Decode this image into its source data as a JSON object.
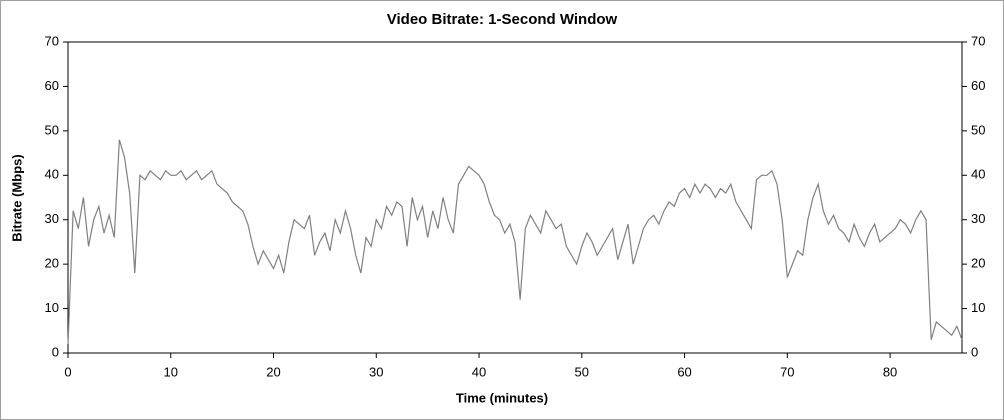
{
  "chart_data": {
    "type": "line",
    "title": "Video Bitrate: 1-Second Window",
    "x_label": "Time (minutes)",
    "y_label": "Bitrate (Mbps)",
    "color": "#808080",
    "xlim": [
      0,
      87
    ],
    "xticks": [
      0,
      10,
      20,
      30,
      40,
      50,
      60,
      70,
      80
    ],
    "ylim": [
      0,
      70
    ],
    "yticks": [
      0,
      10,
      20,
      30,
      40,
      50,
      60,
      70
    ],
    "y2lim": [
      0,
      70
    ],
    "y2ticks": [
      0,
      10,
      20,
      30,
      40,
      50,
      60,
      70
    ],
    "x": [
      0,
      0.5,
      1,
      1.5,
      2,
      2.5,
      3,
      3.5,
      4,
      4.5,
      5,
      5.5,
      6,
      6.5,
      7,
      7.5,
      8,
      8.5,
      9,
      9.5,
      10,
      10.5,
      11,
      11.5,
      12,
      12.5,
      13,
      13.5,
      14,
      14.5,
      15,
      15.5,
      16,
      16.5,
      17,
      17.5,
      18,
      18.5,
      19,
      19.5,
      20,
      20.5,
      21,
      21.5,
      22,
      22.5,
      23,
      23.5,
      24,
      24.5,
      25,
      25.5,
      26,
      26.5,
      27,
      27.5,
      28,
      28.5,
      29,
      29.5,
      30,
      30.5,
      31,
      31.5,
      32,
      32.5,
      33,
      33.5,
      34,
      34.5,
      35,
      35.5,
      36,
      36.5,
      37,
      37.5,
      38,
      38.5,
      39,
      39.5,
      40,
      40.5,
      41,
      41.5,
      42,
      42.5,
      43,
      43.5,
      44,
      44.5,
      45,
      45.5,
      46,
      46.5,
      47,
      47.5,
      48,
      48.5,
      49,
      49.5,
      50,
      50.5,
      51,
      51.5,
      52,
      52.5,
      53,
      53.5,
      54,
      54.5,
      55,
      55.5,
      56,
      56.5,
      57,
      57.5,
      58,
      58.5,
      59,
      59.5,
      60,
      60.5,
      61,
      61.5,
      62,
      62.5,
      63,
      63.5,
      64,
      64.5,
      65,
      65.5,
      66,
      66.5,
      67,
      67.5,
      68,
      68.5,
      69,
      69.5,
      70,
      70.5,
      71,
      71.5,
      72,
      72.5,
      73,
      73.5,
      74,
      74.5,
      75,
      75.5,
      76,
      76.5,
      77,
      77.5,
      78,
      78.5,
      79,
      79.5,
      80,
      80.5,
      81,
      81.5,
      82,
      82.5,
      83,
      83.5,
      84,
      84.5,
      85,
      85.5,
      86,
      86.5,
      87
    ],
    "values": [
      2,
      32,
      28,
      35,
      24,
      30,
      33,
      27,
      31,
      26,
      48,
      44,
      36,
      18,
      40,
      39,
      41,
      40,
      39,
      41,
      40,
      40,
      41,
      39,
      40,
      41,
      39,
      40,
      41,
      38,
      37,
      36,
      34,
      33,
      32,
      29,
      24,
      20,
      23,
      21,
      19,
      22,
      18,
      25,
      30,
      29,
      28,
      31,
      22,
      25,
      27,
      23,
      30,
      27,
      32,
      28,
      22,
      18,
      26,
      24,
      30,
      28,
      33,
      31,
      34,
      33,
      24,
      35,
      30,
      33,
      26,
      32,
      28,
      35,
      30,
      27,
      38,
      40,
      42,
      41,
      40,
      38,
      34,
      31,
      30,
      27,
      29,
      25,
      12,
      28,
      31,
      29,
      27,
      32,
      30,
      28,
      29,
      24,
      22,
      20,
      24,
      27,
      25,
      22,
      24,
      26,
      28,
      21,
      25,
      29,
      20,
      24,
      28,
      30,
      31,
      29,
      32,
      34,
      33,
      36,
      37,
      35,
      38,
      36,
      38,
      37,
      35,
      37,
      36,
      38,
      34,
      32,
      30,
      28,
      39,
      40,
      40,
      41,
      38,
      30,
      17,
      20,
      23,
      22,
      30,
      35,
      38,
      32,
      29,
      31,
      28,
      27,
      25,
      29,
      26,
      24,
      27,
      29,
      25,
      26,
      27,
      28,
      30,
      29,
      27,
      30,
      32,
      30,
      3,
      7,
      6,
      5,
      4,
      6,
      3
    ]
  }
}
